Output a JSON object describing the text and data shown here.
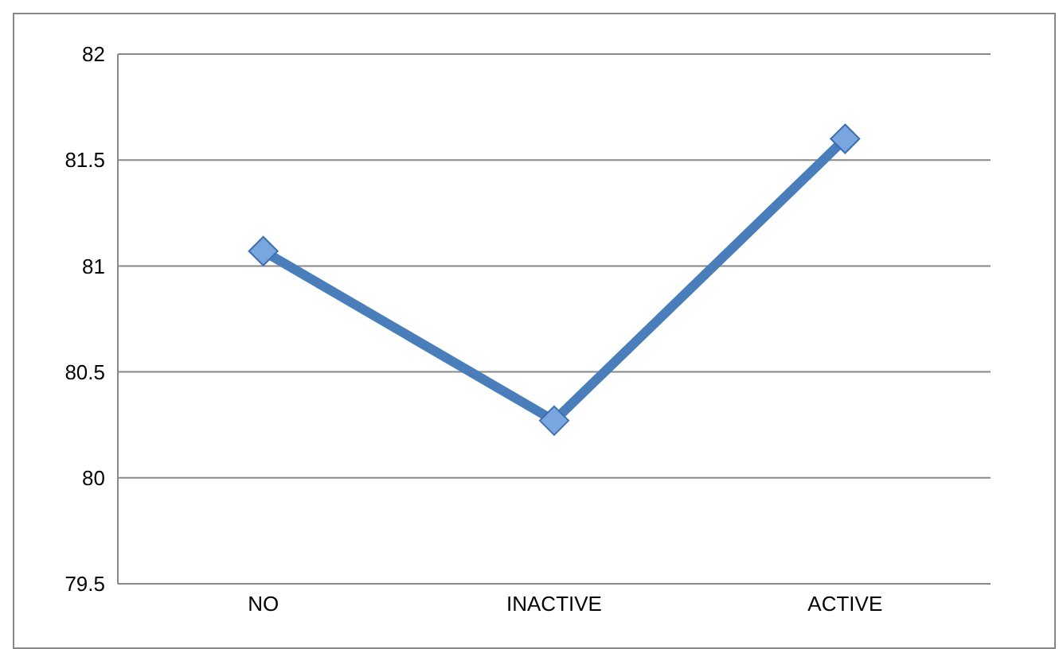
{
  "chart_data": {
    "type": "line",
    "categories": [
      "NO",
      "INACTIVE",
      "ACTIVE"
    ],
    "series": [
      {
        "color": "#4a7ebb",
        "values": [
          81.07,
          80.27,
          81.6
        ]
      }
    ],
    "ylim": [
      79.5,
      82
    ],
    "yticks": [
      79.5,
      80,
      80.5,
      81,
      81.5,
      82
    ],
    "grid": "y",
    "marker": "diamond"
  }
}
